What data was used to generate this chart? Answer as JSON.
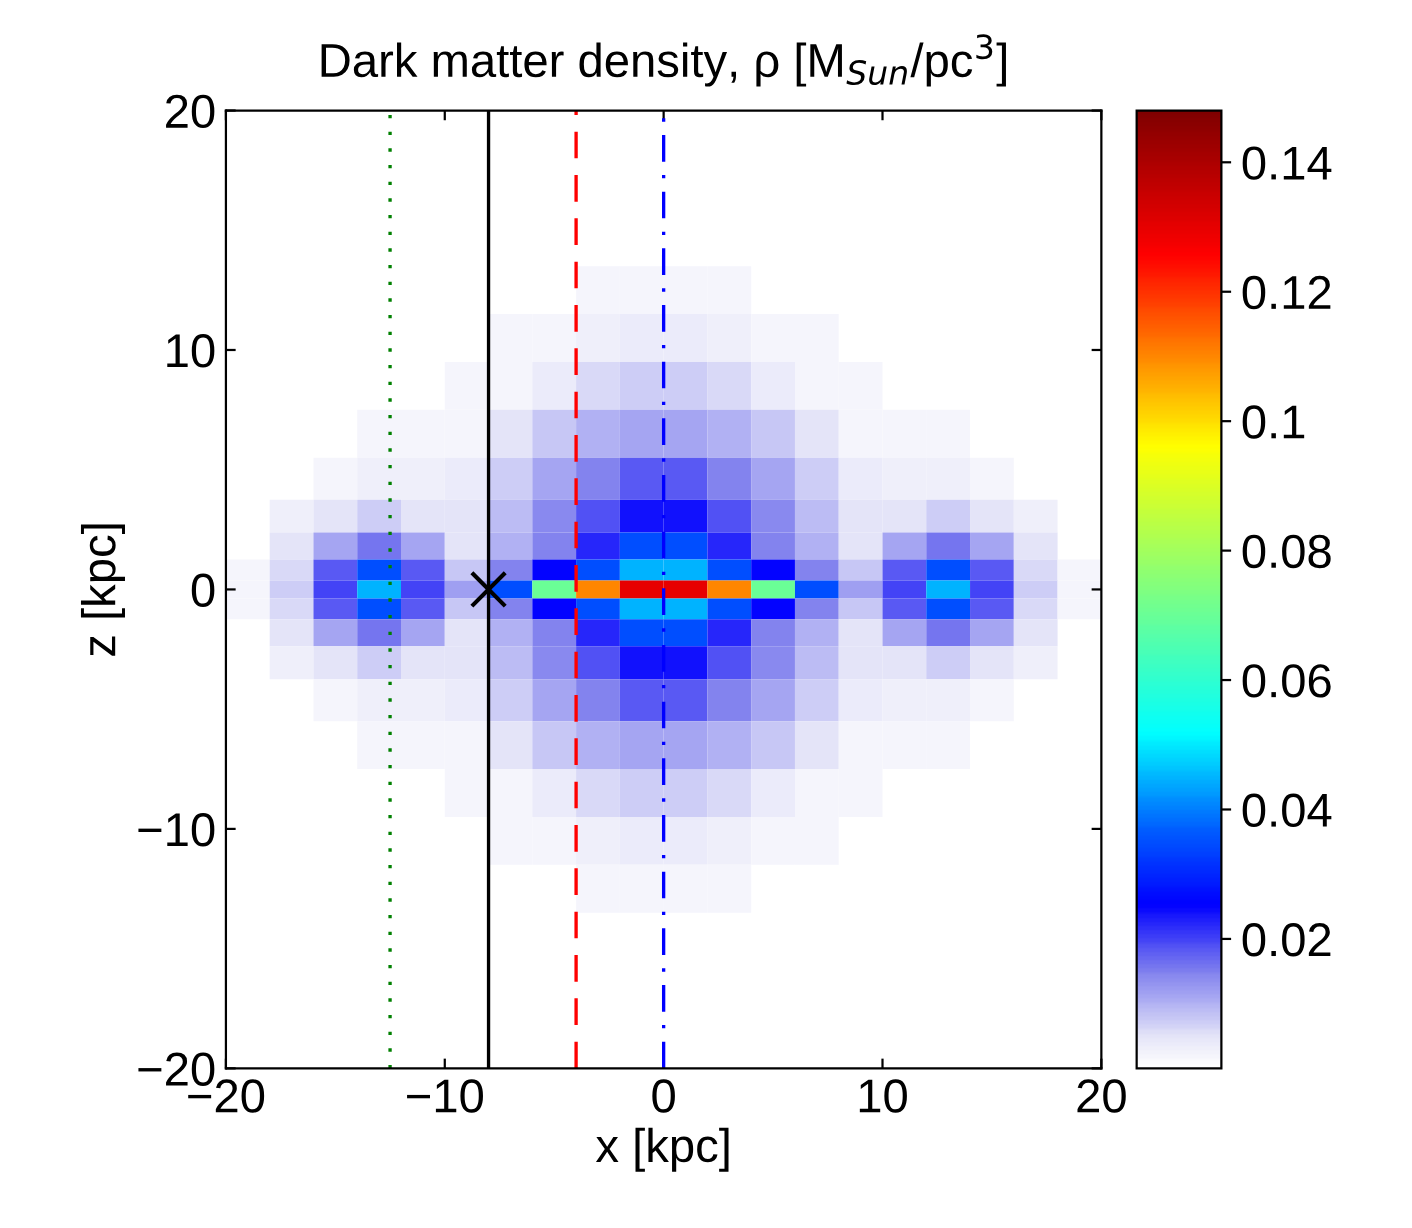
{
  "chart_data": {
    "type": "heatmap",
    "title": "Dark matter density, ρ [M$_{Sun}$/pc$^{3}$]",
    "xlabel": "x [kpc]",
    "ylabel": "z [kpc]",
    "x": [
      -19,
      -17,
      -15,
      -13,
      -11,
      -9,
      -7,
      -5,
      -3,
      -1,
      1,
      3,
      5,
      7,
      9,
      11,
      13,
      15,
      17,
      19
    ],
    "y": [
      12.5,
      10.5,
      8.5,
      6.5,
      4.5,
      3,
      1.75,
      0.75,
      0,
      -0.75,
      -1.75,
      -3,
      -4.5,
      -6.5,
      -8.5,
      -10.5,
      -12.5
    ],
    "cells": [
      [
        null,
        null,
        null,
        null,
        null,
        null,
        null,
        null,
        0.002,
        0.002,
        0.002,
        0.002,
        null,
        null,
        null,
        null,
        null,
        null,
        null,
        null
      ],
      [
        null,
        null,
        null,
        null,
        null,
        null,
        0.002,
        0.002,
        0.003,
        0.004,
        0.004,
        0.003,
        0.002,
        0.002,
        null,
        null,
        null,
        null,
        null,
        null
      ],
      [
        null,
        null,
        null,
        null,
        null,
        0.002,
        0.002,
        0.004,
        0.006,
        0.007,
        0.007,
        0.006,
        0.004,
        0.002,
        0.002,
        null,
        null,
        null,
        null,
        null
      ],
      [
        null,
        null,
        null,
        0.002,
        0.002,
        0.002,
        0.005,
        0.008,
        0.01,
        0.011,
        0.011,
        0.01,
        0.008,
        0.005,
        0.002,
        0.002,
        0.002,
        null,
        null,
        null
      ],
      [
        null,
        null,
        0.002,
        0.003,
        0.003,
        0.004,
        0.007,
        0.011,
        0.015,
        0.018,
        0.018,
        0.015,
        0.011,
        0.007,
        0.004,
        0.003,
        0.003,
        0.002,
        null,
        null
      ],
      [
        null,
        0.003,
        0.005,
        0.007,
        0.005,
        0.005,
        0.009,
        0.014,
        0.019,
        0.024,
        0.024,
        0.019,
        0.014,
        0.009,
        0.005,
        0.005,
        0.007,
        0.005,
        0.003,
        null
      ],
      [
        null,
        0.005,
        0.011,
        0.016,
        0.011,
        0.005,
        0.01,
        0.015,
        0.022,
        0.035,
        0.035,
        0.022,
        0.015,
        0.01,
        0.005,
        0.011,
        0.016,
        0.011,
        0.005,
        null
      ],
      [
        0.002,
        0.006,
        0.018,
        0.035,
        0.018,
        0.008,
        0.015,
        0.025,
        0.035,
        0.045,
        0.045,
        0.035,
        0.025,
        0.015,
        0.008,
        0.018,
        0.035,
        0.018,
        0.006,
        0.002
      ],
      [
        0.002,
        0.007,
        0.02,
        0.045,
        0.02,
        0.012,
        0.035,
        0.07,
        0.11,
        0.13,
        0.13,
        0.11,
        0.07,
        0.035,
        0.012,
        0.02,
        0.045,
        0.02,
        0.007,
        0.002
      ],
      [
        0.002,
        0.006,
        0.018,
        0.035,
        0.018,
        0.008,
        0.015,
        0.025,
        0.035,
        0.045,
        0.045,
        0.035,
        0.025,
        0.015,
        0.008,
        0.018,
        0.035,
        0.018,
        0.006,
        0.002
      ],
      [
        null,
        0.005,
        0.011,
        0.016,
        0.011,
        0.005,
        0.01,
        0.015,
        0.022,
        0.035,
        0.035,
        0.022,
        0.015,
        0.01,
        0.005,
        0.011,
        0.016,
        0.011,
        0.005,
        null
      ],
      [
        null,
        0.003,
        0.005,
        0.007,
        0.005,
        0.005,
        0.009,
        0.014,
        0.019,
        0.024,
        0.024,
        0.019,
        0.014,
        0.009,
        0.005,
        0.005,
        0.007,
        0.005,
        0.003,
        null
      ],
      [
        null,
        null,
        0.002,
        0.003,
        0.003,
        0.004,
        0.007,
        0.011,
        0.015,
        0.018,
        0.018,
        0.015,
        0.011,
        0.007,
        0.004,
        0.003,
        0.003,
        0.002,
        null,
        null
      ],
      [
        null,
        null,
        null,
        0.002,
        0.002,
        0.002,
        0.005,
        0.008,
        0.01,
        0.011,
        0.011,
        0.01,
        0.008,
        0.005,
        0.002,
        0.002,
        0.002,
        null,
        null,
        null
      ],
      [
        null,
        null,
        null,
        null,
        null,
        0.002,
        0.002,
        0.004,
        0.006,
        0.007,
        0.007,
        0.006,
        0.004,
        0.002,
        0.002,
        null,
        null,
        null,
        null,
        null
      ],
      [
        null,
        null,
        null,
        null,
        null,
        null,
        0.002,
        0.002,
        0.003,
        0.004,
        0.004,
        0.003,
        0.002,
        0.002,
        null,
        null,
        null,
        null,
        null,
        null
      ],
      [
        null,
        null,
        null,
        null,
        null,
        null,
        null,
        null,
        0.002,
        0.002,
        0.002,
        0.002,
        null,
        null,
        null,
        null,
        null,
        null,
        null,
        null
      ]
    ],
    "clim": [
      0,
      0.148
    ],
    "cticks": [
      0.02,
      0.04,
      0.06,
      0.08,
      0.1,
      0.12,
      0.14
    ],
    "xlim": [
      -20,
      20
    ],
    "ylim": [
      -20,
      20
    ],
    "xticks": [
      {
        "value": -20,
        "label": "−20"
      },
      {
        "value": -10,
        "label": "−10"
      },
      0,
      10,
      20
    ],
    "yticks": [
      {
        "value": -20,
        "label": "−20"
      },
      {
        "value": -10,
        "label": "−10"
      },
      0,
      10,
      20
    ],
    "series": [
      {
        "type": "scatter",
        "color": "#000000",
        "marker": "cross",
        "x": [
          -8
        ],
        "values": [
          0
        ]
      }
    ],
    "ref_lines": [
      {
        "axis": "x",
        "value": -12.5,
        "color": "#008000",
        "line_style": "dotted"
      },
      {
        "axis": "x",
        "value": -8,
        "color": "#000000",
        "line_style": "solid"
      },
      {
        "axis": "x",
        "value": -4,
        "color": "#ff0000",
        "line_style": "dashed"
      },
      {
        "axis": "x",
        "value": 0,
        "color": "#0000ff",
        "line_style": "dashdot"
      }
    ],
    "grid": false
  }
}
